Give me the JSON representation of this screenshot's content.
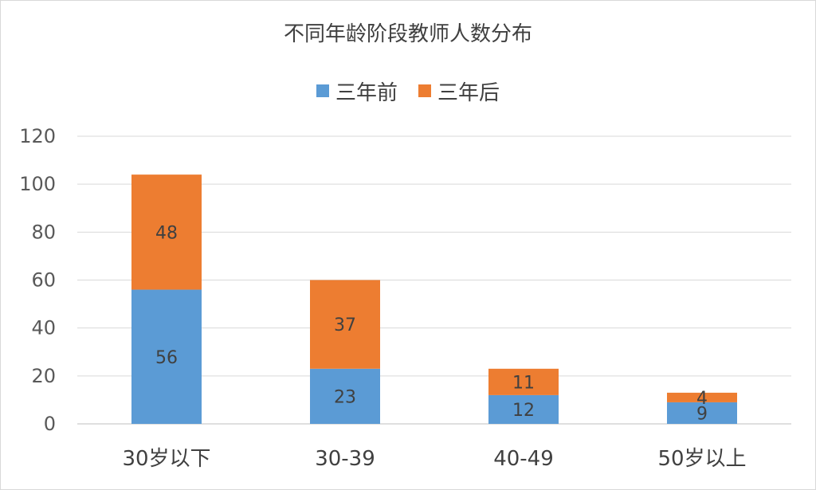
{
  "chart_data": {
    "type": "bar",
    "stacked": true,
    "title": "不同年龄阶段教师人数分布",
    "categories": [
      "30岁以下",
      "30-39",
      "40-49",
      "50岁以上"
    ],
    "series": [
      {
        "name": "三年前",
        "values": [
          56,
          23,
          12,
          9
        ],
        "color": "#5b9bd5"
      },
      {
        "name": "三年后",
        "values": [
          48,
          37,
          11,
          4
        ],
        "color": "#ed7d31"
      }
    ],
    "ylim": [
      0,
      120
    ],
    "yticks": [
      0,
      20,
      40,
      60,
      80,
      100,
      120
    ],
    "xlabel": "",
    "ylabel": "",
    "grid": true,
    "legend_position": "top"
  }
}
